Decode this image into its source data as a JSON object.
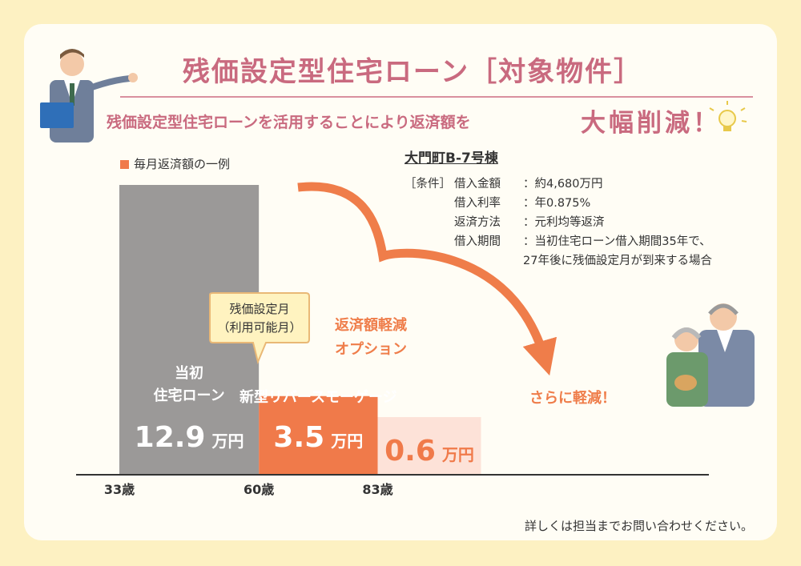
{
  "title": "残価設定型住宅ローン［対象物件］",
  "subtitle": "残価設定型住宅ローンを活用することにより返済額を",
  "subtitle_emphasis": "大幅削減！",
  "legend_label": "毎月返済額の一例",
  "property": {
    "name": "大門町B-7号棟",
    "conditions_label": "［条件］",
    "rows": [
      {
        "label": "借入金額",
        "value": "：約4,680万円"
      },
      {
        "label": "借入利率",
        "value": "：年0.875%"
      },
      {
        "label": "返済方法",
        "value": "：元利均等返済"
      },
      {
        "label": "借入期間",
        "value": "：当初住宅ローン借入期間35年で、"
      }
    ],
    "continuation": "27年後に残価設定月が到来する場合"
  },
  "callout": {
    "line1": "残価設定月",
    "line2": "（利用可能月）"
  },
  "option_label": {
    "line1": "返済額軽減",
    "line2": "オプション"
  },
  "further_label": "さらに軽減！",
  "footer": "詳しくは担当までお問い合わせください。",
  "colors": {
    "gray": "#9b9998",
    "orange": "#f07a4a",
    "pink": "#fde2d8",
    "arrow": "#ef7d4a",
    "title": "#c96a7f"
  },
  "chart_data": {
    "type": "bar",
    "title": "毎月返済額の一例",
    "unit": "万円",
    "series": [
      {
        "name": "当初住宅ローン",
        "line1": "当初",
        "line2": "住宅ローン",
        "start_age": 33,
        "end_age": 60,
        "value": 12.9,
        "value_text": "12.9"
      },
      {
        "name": "新型リバースモーゲージ",
        "line1": "新型リバースモーゲージ",
        "line2": "",
        "start_age": 60,
        "end_age": 83,
        "value": 3.5,
        "value_text": "3.5"
      },
      {
        "name": "さらに軽減",
        "line1": "",
        "line2": "",
        "start_age": 83,
        "end_age": 103,
        "value": 0.6,
        "value_text": "0.6"
      }
    ],
    "x_ticks": [
      {
        "age": 33,
        "label": "33歳"
      },
      {
        "age": 60,
        "label": "60歳"
      },
      {
        "age": 83,
        "label": "83歳"
      }
    ]
  }
}
